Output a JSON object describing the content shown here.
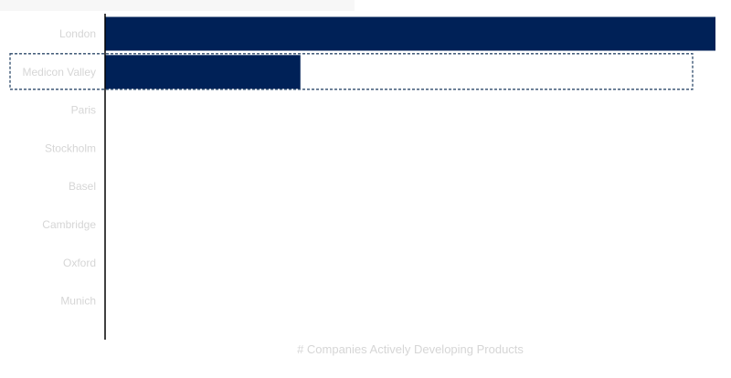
{
  "chart_data": {
    "type": "bar",
    "orientation": "horizontal",
    "categories": [
      "London",
      "Medicon Valley",
      "Paris",
      "Stockholm",
      "Basel",
      "Cambridge",
      "Oxford",
      "Munich"
    ],
    "values": [
      100,
      32,
      0,
      0,
      0,
      0,
      0,
      0
    ],
    "xlabel": "# Companies Actively Developing Products",
    "ylabel": "",
    "xlim": [
      0,
      100
    ],
    "grid": false,
    "legend": "none",
    "highlighted_category": "Medicon Valley",
    "colors": {
      "bar": "#002157",
      "highlight_outline": "#2e4a6b",
      "axis_line": "#000000",
      "label_text": "#d6d6d6",
      "corner_panel": "#f7f7f7"
    }
  }
}
